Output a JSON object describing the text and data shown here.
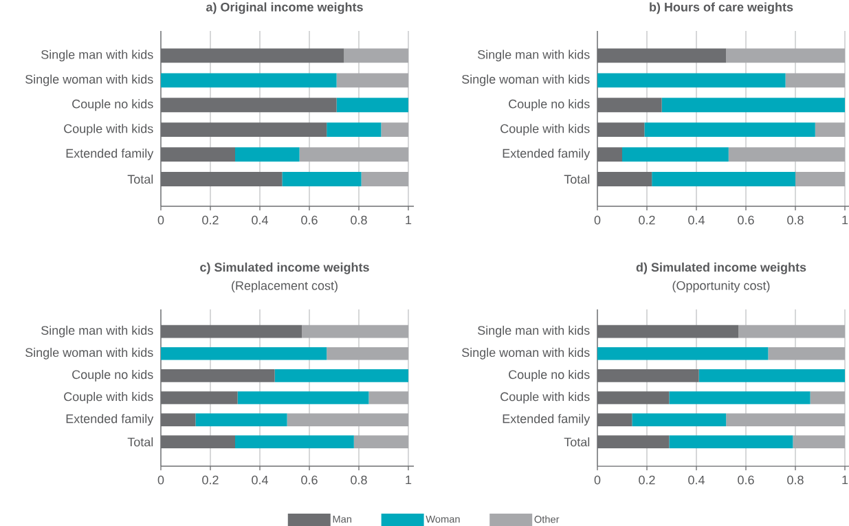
{
  "chart_data": [
    {
      "type": "bar",
      "title": "a) Original income weights",
      "orientation": "horizontal",
      "stacked": true,
      "grid": "x",
      "categories": [
        "Single man with kids",
        "Single woman with kids",
        "Couple no kids",
        "Couple with kids",
        "Extended family",
        "Total"
      ],
      "xlim": [
        0,
        1
      ],
      "xticks": [
        0,
        0.2,
        0.4,
        0.6,
        0.8,
        1
      ],
      "series": [
        {
          "color": "#6d6e71",
          "values": [
            0.74,
            0,
            0.71,
            0.67,
            0.3,
            0.49
          ]
        },
        {
          "color": "#00a9bc",
          "values": [
            0,
            0.71,
            0.29,
            0.22,
            0.26,
            0.32
          ]
        },
        {
          "color": "#a7a8ab",
          "values": [
            0.26,
            0.29,
            0,
            0.11,
            0.44,
            0.19
          ]
        }
      ]
    },
    {
      "type": "bar",
      "title": "b)  Hours of care weights",
      "orientation": "horizontal",
      "stacked": true,
      "grid": "x",
      "categories": [
        "Single man with kids",
        "Single woman with kids",
        "Couple no kids",
        "Couple with kids",
        "Extended family",
        "Total"
      ],
      "xlim": [
        0,
        1
      ],
      "xticks": [
        0,
        0.2,
        0.4,
        0.6,
        0.8,
        1
      ],
      "series": [
        {
          "color": "#6d6e71",
          "values": [
            0.52,
            0,
            0.26,
            0.19,
            0.1,
            0.22
          ]
        },
        {
          "color": "#00a9bc",
          "values": [
            0,
            0.76,
            0.74,
            0.69,
            0.43,
            0.58
          ]
        },
        {
          "color": "#a7a8ab",
          "values": [
            0.48,
            0.24,
            0,
            0.12,
            0.47,
            0.2
          ]
        }
      ]
    },
    {
      "type": "bar",
      "title": "c) Simulated income weights",
      "subtitle": "(Replacement cost)",
      "orientation": "horizontal",
      "stacked": true,
      "grid": "x",
      "categories": [
        "Single man with kids",
        "Single woman with kids",
        "Couple no kids",
        "Couple with kids",
        "Extended family",
        "Total"
      ],
      "xlim": [
        0,
        1
      ],
      "xticks": [
        0,
        0.2,
        0.4,
        0.6,
        0.8,
        1
      ],
      "series": [
        {
          "color": "#6d6e71",
          "values": [
            0.57,
            0,
            0.46,
            0.31,
            0.14,
            0.3
          ]
        },
        {
          "color": "#00a9bc",
          "values": [
            0,
            0.67,
            0.54,
            0.53,
            0.37,
            0.48
          ]
        },
        {
          "color": "#a7a8ab",
          "values": [
            0.43,
            0.33,
            0,
            0.16,
            0.49,
            0.22
          ]
        }
      ]
    },
    {
      "type": "bar",
      "title": "d) Simulated income weights",
      "subtitle": "(Opportunity cost)",
      "orientation": "horizontal",
      "stacked": true,
      "grid": "x",
      "legend": "bottom",
      "categories": [
        "Single man with kids",
        "Single woman with kids",
        "Couple no kids",
        "Couple with kids",
        "Extended family",
        "Total"
      ],
      "xlim": [
        0,
        1
      ],
      "xticks": [
        0,
        0.2,
        0.4,
        0.6,
        0.8,
        1
      ],
      "series": [
        {
          "name": "Man",
          "color": "#6d6e71",
          "values": [
            0.57,
            0,
            0.41,
            0.29,
            0.14,
            0.29
          ]
        },
        {
          "name": "Woman",
          "color": "#00a9bc",
          "values": [
            0,
            0.69,
            0.59,
            0.57,
            0.38,
            0.5
          ]
        },
        {
          "name": "Other",
          "color": "#a7a8ab",
          "values": [
            0.43,
            0.31,
            0,
            0.14,
            0.48,
            0.21
          ]
        }
      ]
    }
  ]
}
